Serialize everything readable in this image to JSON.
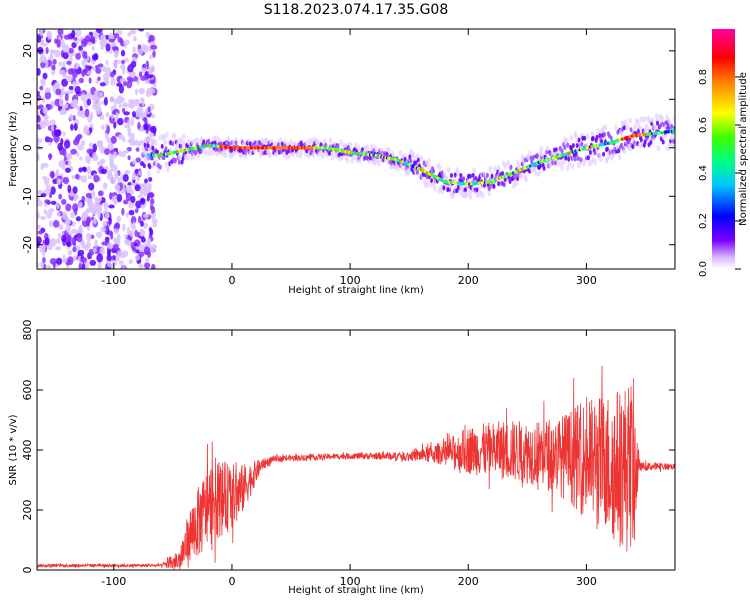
{
  "title": "S118.2023.074.17.35.G08",
  "chart_data": [
    {
      "type": "heatmap",
      "title": "S118.2023.074.17.35.G08",
      "xlabel": "Height of straight line (km)",
      "ylabel": "Frequency (Hz)",
      "xlim": [
        -165,
        375
      ],
      "ylim": [
        -25,
        24.5
      ],
      "xticks": [
        -100,
        0,
        100,
        200,
        300
      ],
      "xtick_labels": [
        "-100",
        "0",
        "100",
        "200",
        "300"
      ],
      "yticks": [
        -20,
        -10,
        0,
        10,
        20
      ],
      "ytick_labels": [
        "-20",
        "-10",
        "0",
        "10",
        "20"
      ],
      "colorbar": {
        "label": "Normalized spectral amplitude",
        "range": [
          0.0,
          1.0
        ],
        "ticks": [
          0.0,
          0.2,
          0.4,
          0.6,
          0.8
        ],
        "tick_labels": [
          "0.0",
          "0.2",
          "0.4",
          "0.6",
          "0.8"
        ],
        "colormap": [
          "#ffffff",
          "#5a00ff",
          "#0000ff",
          "#00ffff",
          "#00ff00",
          "#ffff00",
          "#ff8000",
          "#ff0000",
          "#ff00a0"
        ]
      },
      "ridge": {
        "x": [
          -60,
          -40,
          -20,
          0,
          20,
          40,
          60,
          80,
          100,
          120,
          140,
          160,
          180,
          200,
          220,
          240,
          260,
          280,
          300,
          320,
          340,
          360,
          375
        ],
        "y": [
          -1.5,
          -0.5,
          0.5,
          0.0,
          0.0,
          0.0,
          0.0,
          0.0,
          -1.0,
          -1.5,
          -2.5,
          -4.5,
          -7,
          -7.5,
          -7,
          -5,
          -3,
          -1.5,
          0,
          1,
          2.5,
          3,
          3.5
        ]
      },
      "grid": false
    },
    {
      "type": "line",
      "xlabel": "Height of straight line (km)",
      "ylabel": "SNR (10 * v/v)",
      "xlim": [
        -165,
        375
      ],
      "ylim": [
        0,
        800
      ],
      "xticks": [
        -100,
        0,
        100,
        200,
        300
      ],
      "xtick_labels": [
        "-100",
        "0",
        "100",
        "200",
        "300"
      ],
      "yticks": [
        0,
        200,
        400,
        600,
        800
      ],
      "ytick_labels": [
        "0",
        "200",
        "400",
        "600",
        "800"
      ],
      "color": "#ee3333",
      "envelope": {
        "x": [
          -165,
          -60,
          -45,
          -35,
          -25,
          -15,
          -5,
          5,
          15,
          25,
          35,
          60,
          100,
          150,
          180,
          200,
          230,
          260,
          280,
          300,
          320,
          340,
          345,
          375
        ],
        "mean": [
          15,
          15,
          30,
          120,
          180,
          240,
          240,
          250,
          300,
          350,
          370,
          375,
          380,
          380,
          390,
          400,
          400,
          390,
          380,
          370,
          350,
          340,
          345,
          345
        ],
        "amplitude": [
          5,
          5,
          40,
          100,
          130,
          140,
          120,
          100,
          60,
          20,
          10,
          10,
          10,
          15,
          40,
          80,
          100,
          110,
          140,
          200,
          250,
          300,
          15,
          10
        ]
      },
      "grid": false
    }
  ]
}
